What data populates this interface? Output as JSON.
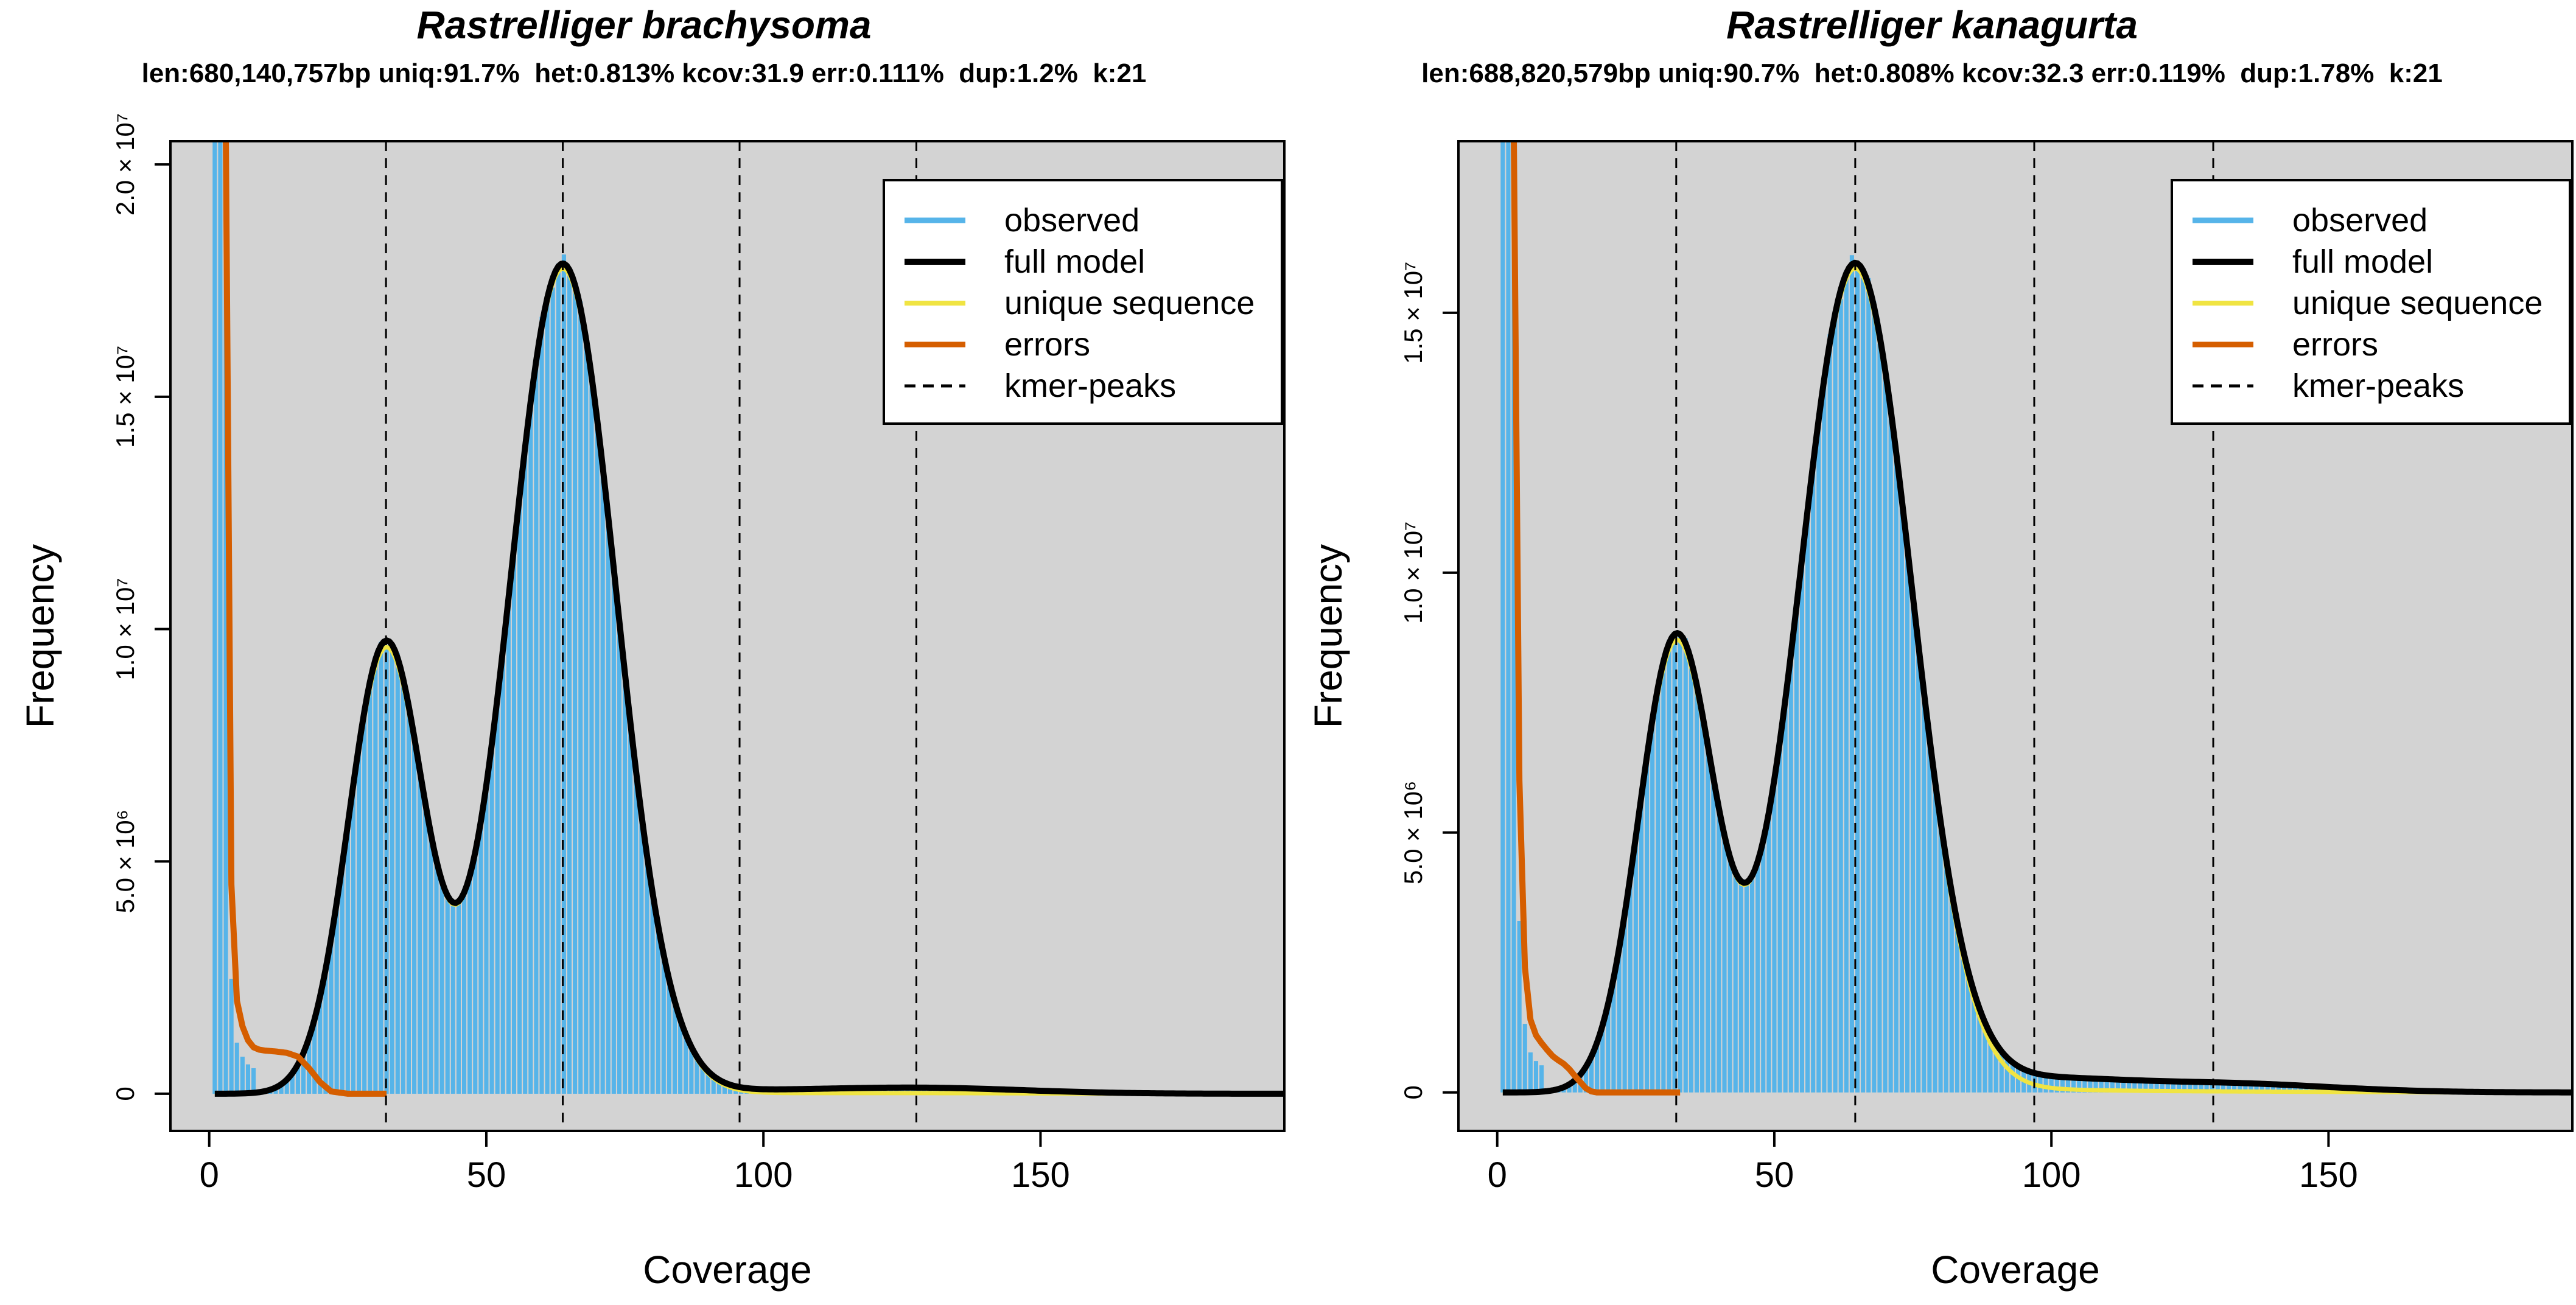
{
  "colors": {
    "panel_bg": "#d3d3d3",
    "observed": "#56b4e9",
    "full_model": "#000000",
    "unique_sequence": "#f0e442",
    "errors": "#d55e00",
    "kmer_peaks": "#000000"
  },
  "chart_data": [
    {
      "type": "bar",
      "title": "Rastrelliger brachysoma",
      "subtitle": "len:680,140,757bp uniq:91.7%  het:0.813% kcov:31.9 err:0.111%  dup:1.2%  k:21",
      "xlabel": "Coverage",
      "ylabel": "Frequency",
      "xlim": [
        -7,
        194
      ],
      "ylim": [
        -800000,
        20500000
      ],
      "xticks": [
        0,
        50,
        100,
        150
      ],
      "xtick_labels": [
        "0",
        "50",
        "100",
        "150"
      ],
      "yticks": [
        0,
        5000000,
        10000000,
        15000000,
        20000000
      ],
      "ytick_labels": [
        "0",
        "5.0 × 10⁶",
        "1.0 × 10⁷",
        "1.5 × 10⁷",
        "2.0 × 10⁷"
      ],
      "kmer_peaks": [
        31.9,
        63.8,
        95.7,
        127.6
      ],
      "model": {
        "c1": 31.9,
        "s1": 6.8,
        "h1": 9540000,
        "c2": 63.8,
        "s2": 9.6,
        "h2": 17760000,
        "c3": 95.7,
        "s3": 13.5,
        "h3": 40000,
        "c4": 127.6,
        "s4": 19.0,
        "h4": 130000
      },
      "errors_curve": {
        "x": [
          3,
          4,
          5,
          6,
          7,
          8,
          9,
          10,
          12,
          14,
          16,
          18,
          20,
          22,
          25,
          32
        ],
        "y": [
          20500000,
          4500000,
          2000000,
          1450000,
          1150000,
          1000000,
          950000,
          930000,
          910000,
          880000,
          800000,
          550000,
          250000,
          50000,
          0,
          0
        ]
      },
      "legend": {
        "position": "top-right",
        "entries": [
          "observed",
          "full model",
          "unique sequence",
          "errors",
          "kmer-peaks"
        ]
      }
    },
    {
      "type": "bar",
      "title": "Rastrelliger kanagurta",
      "subtitle": "len:688,820,579bp uniq:90.7%  het:0.808% kcov:32.3 err:0.119%  dup:1.78%  k:21",
      "xlabel": "Coverage",
      "ylabel": "Frequency",
      "xlim": [
        -7,
        194
      ],
      "ylim": [
        -740000,
        18300000
      ],
      "xticks": [
        0,
        50,
        100,
        150
      ],
      "xtick_labels": [
        "0",
        "50",
        "100",
        "150"
      ],
      "yticks": [
        0,
        5000000,
        10000000,
        15000000
      ],
      "ytick_labels": [
        "0",
        "5.0 × 10⁶",
        "1.0 × 10⁷",
        "1.5 × 10⁷"
      ],
      "kmer_peaks": [
        32.3,
        64.6,
        96.9,
        129.2
      ],
      "model": {
        "c1": 32.3,
        "s1": 6.8,
        "h1": 8600000,
        "c2": 64.6,
        "s2": 10.2,
        "h2": 15850000,
        "c3": 96.9,
        "s3": 14.0,
        "h3": 220000,
        "c4": 129.2,
        "s4": 20.0,
        "h4": 180000
      },
      "errors_curve": {
        "x": [
          3,
          4,
          5,
          6,
          7,
          8,
          9,
          10,
          11,
          12,
          13,
          14,
          15,
          16,
          17,
          18,
          33
        ],
        "y": [
          18300000,
          6000000,
          2400000,
          1400000,
          1100000,
          950000,
          820000,
          700000,
          620000,
          550000,
          450000,
          320000,
          200000,
          80000,
          20000,
          0,
          0
        ]
      },
      "legend": {
        "position": "top-right",
        "entries": [
          "observed",
          "full model",
          "unique sequence",
          "errors",
          "kmer-peaks"
        ]
      }
    }
  ]
}
